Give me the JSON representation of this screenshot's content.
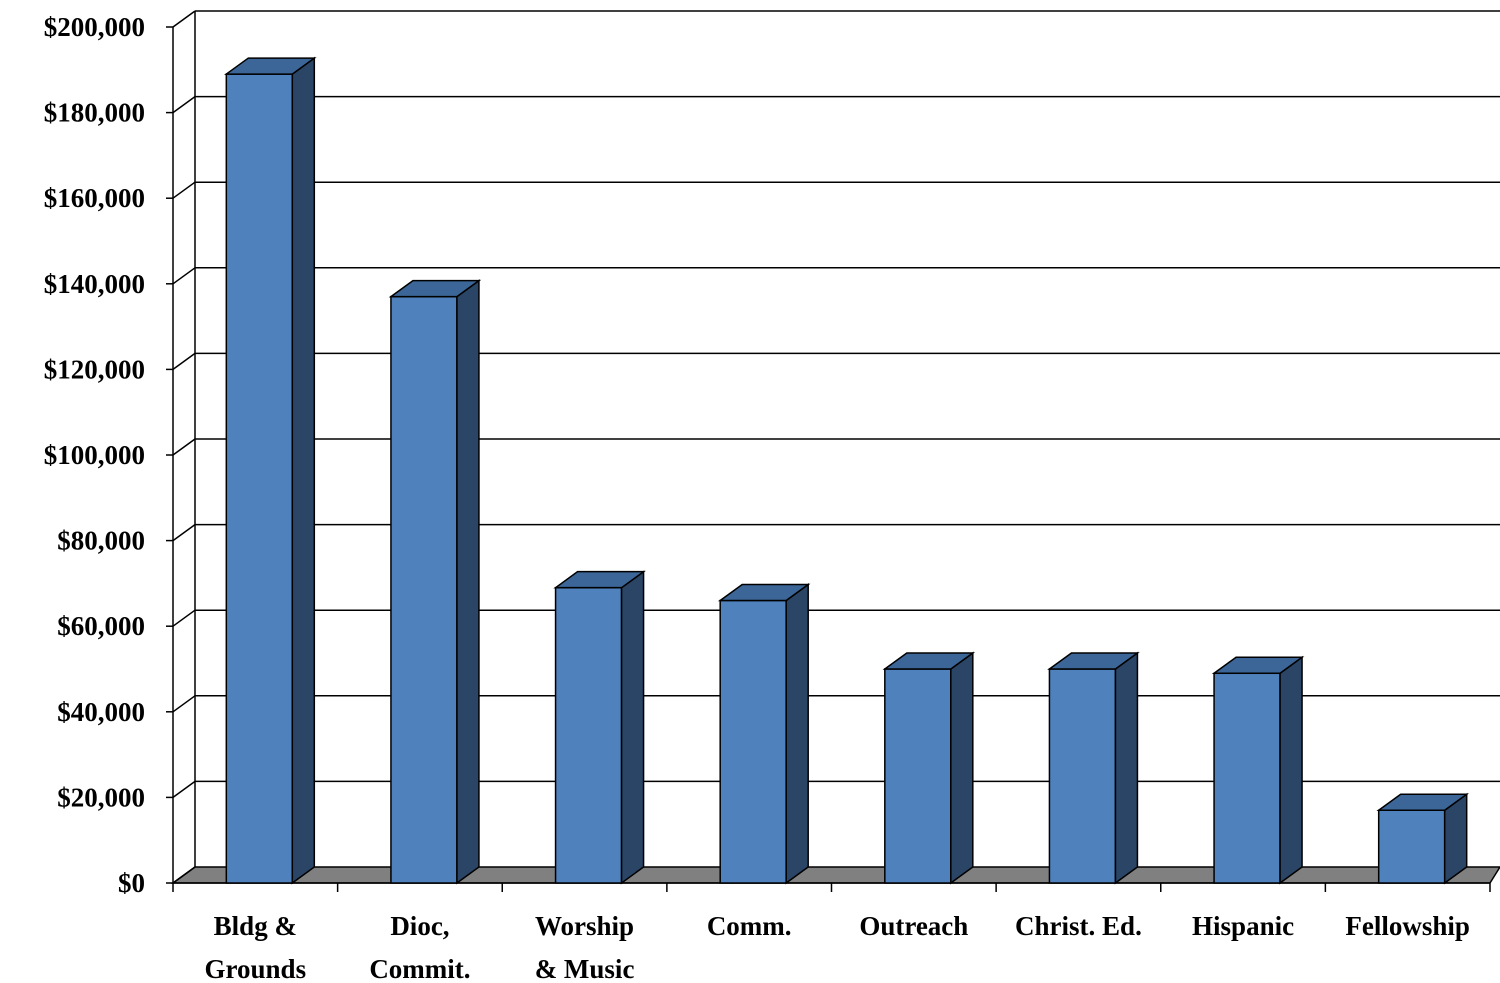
{
  "chart_data": {
    "type": "bar",
    "style": "3d-column",
    "categories": [
      [
        "Bldg &",
        "Grounds"
      ],
      [
        "Dioc,",
        "Commit."
      ],
      [
        "Worship",
        "& Music"
      ],
      [
        "Comm."
      ],
      [
        "Outreach"
      ],
      [
        "Christ. Ed."
      ],
      [
        "Hispanic"
      ],
      [
        "Fellowship"
      ]
    ],
    "values": [
      189000,
      137000,
      69000,
      66000,
      50000,
      50000,
      49000,
      17000
    ],
    "ylim": [
      0,
      200000
    ],
    "yticks": [
      "$0",
      "$20,000",
      "$40,000",
      "$60,000",
      "$80,000",
      "$100,000",
      "$120,000",
      "$140,000",
      "$160,000",
      "$180,000",
      "$200,000"
    ],
    "title": "",
    "xlabel": "",
    "ylabel": "",
    "grid": true,
    "legend": "none",
    "colors": {
      "bar_front": "#4f81bd",
      "bar_top": "#3c6698",
      "bar_side": "#2a4565",
      "floor": "#808080",
      "gridline": "#000000"
    }
  }
}
